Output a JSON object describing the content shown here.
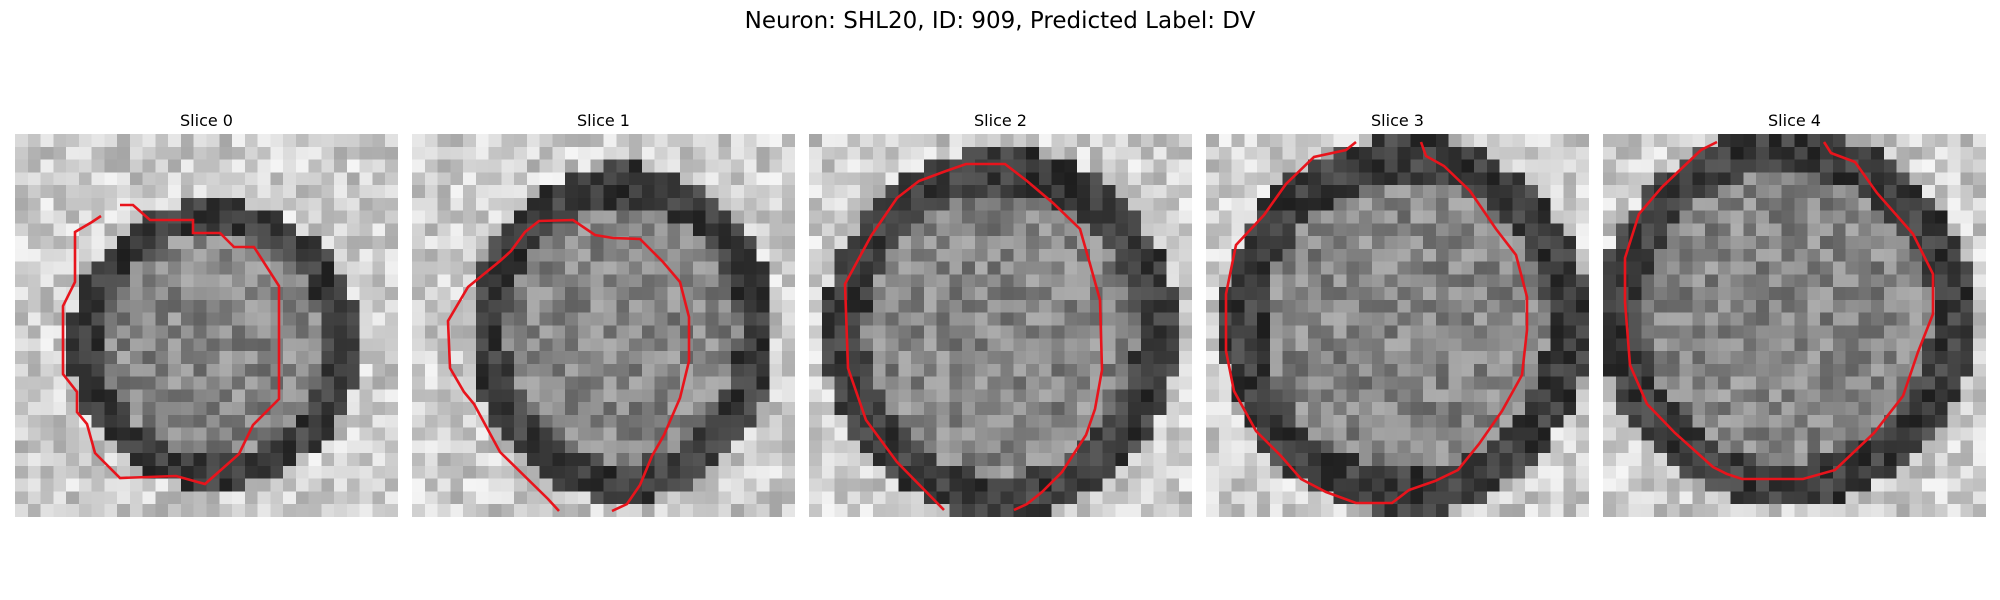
{
  "figure": {
    "title": "Neuron: SHL20, ID: 909, Predicted Label: DV"
  },
  "panels": [
    {
      "title": "Slice 0"
    },
    {
      "title": "Slice 1"
    },
    {
      "title": "Slice 2"
    },
    {
      "title": "Slice 3"
    },
    {
      "title": "Slice 4"
    }
  ],
  "colors": {
    "contour": "#e8141c",
    "background": "#ffffff"
  }
}
